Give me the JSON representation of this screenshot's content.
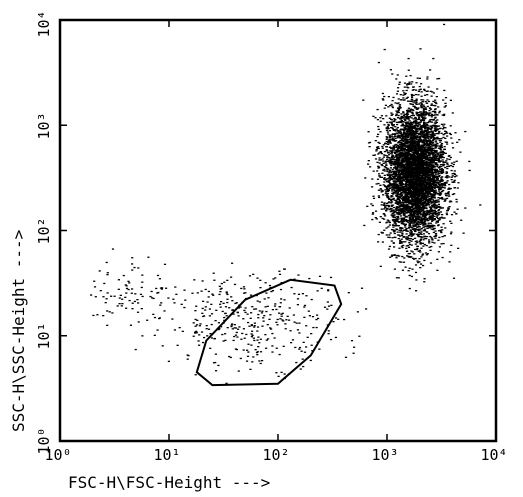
{
  "chart_data": {
    "type": "scatter",
    "title": "",
    "xlabel": "FSC-H\\FSC-Height --->",
    "ylabel": "SSC-H\\SSC-Height --->",
    "x_scale": "log",
    "y_scale": "log",
    "xlim": [
      1,
      10000
    ],
    "ylim": [
      1,
      10000
    ],
    "x_tick_labels": [
      "10⁰",
      "10¹",
      "10²",
      "10³",
      "10⁴"
    ],
    "y_tick_labels": [
      "10⁰",
      "10¹",
      "10²",
      "10³",
      "10⁴"
    ],
    "grid": false,
    "colors": {
      "points": "#000000",
      "gate": "#000000",
      "frame": "#000000"
    },
    "populations": [
      {
        "center": [
          1800,
          350
        ],
        "spread_log": [
          0.14,
          0.33
        ],
        "count": 5200,
        "density": "very dense",
        "role": "large-cell cluster"
      },
      {
        "center": [
          60,
          14
        ],
        "spread_log": [
          0.4,
          0.22
        ],
        "count": 380,
        "density": "moderate",
        "role": "small-cell cluster inside gate"
      },
      {
        "center": [
          4.5,
          25
        ],
        "spread_log": [
          0.2,
          0.18
        ],
        "count": 90,
        "density": "sparse",
        "role": "low-FSC debris"
      }
    ],
    "gate": {
      "shape": "polygon",
      "vertices": [
        [
          18,
          4.5
        ],
        [
          25,
          3.4
        ],
        [
          100,
          3.5
        ],
        [
          200,
          6.5
        ],
        [
          380,
          20
        ],
        [
          330,
          30
        ],
        [
          130,
          34
        ],
        [
          50,
          22
        ],
        [
          22,
          9
        ]
      ]
    }
  }
}
